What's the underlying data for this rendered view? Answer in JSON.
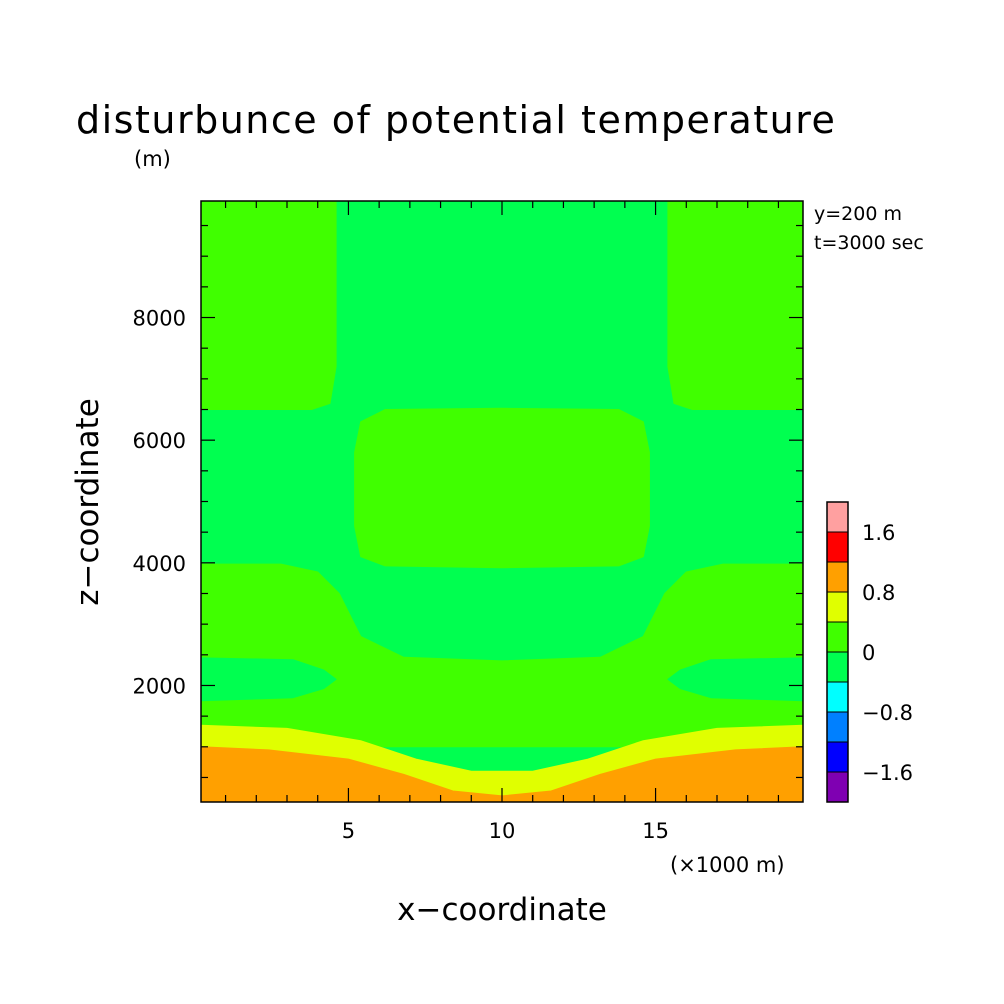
{
  "chart_data": {
    "type": "heatmap",
    "title": "disturbunce of potential temperature",
    "y_unit": "(m)",
    "x_unit": "(×1000 m)",
    "xlabel": "x−coordinate",
    "ylabel": "z−coordinate",
    "annotations": [
      "y=200 m",
      "t=3000 sec"
    ],
    "x_range": [
      0.2,
      19.8
    ],
    "y_range": [
      100,
      9900
    ],
    "x_ticks": [
      {
        "value": 5,
        "label": "5"
      },
      {
        "value": 10,
        "label": "10"
      },
      {
        "value": 15,
        "label": "15"
      }
    ],
    "y_ticks": [
      {
        "value": 2000,
        "label": "2000"
      },
      {
        "value": 4000,
        "label": "4000"
      },
      {
        "value": 6000,
        "label": "6000"
      },
      {
        "value": 8000,
        "label": "8000"
      }
    ],
    "colorbar": {
      "levels": [
        {
          "from": -2.0,
          "to": -1.6,
          "color": "#7f00b2"
        },
        {
          "from": -1.6,
          "to": -1.2,
          "color": "#0000ff"
        },
        {
          "from": -1.2,
          "to": -0.8,
          "color": "#0080ff"
        },
        {
          "from": -0.8,
          "to": -0.4,
          "color": "#00ffff"
        },
        {
          "from": -0.4,
          "to": 0.0,
          "color": "#00ff50"
        },
        {
          "from": 0.0,
          "to": 0.4,
          "color": "#40ff00"
        },
        {
          "from": 0.4,
          "to": 0.8,
          "color": "#e0ff00"
        },
        {
          "from": 0.8,
          "to": 1.2,
          "color": "#ffa000"
        },
        {
          "from": 1.2,
          "to": 1.6,
          "color": "#ff0000"
        },
        {
          "from": 1.6,
          "to": 2.0,
          "color": "#ffa0a0"
        }
      ],
      "tick_labels": [
        {
          "value": 1.6,
          "label": "1.6"
        },
        {
          "value": 0.8,
          "label": "0.8"
        },
        {
          "value": 0.0,
          "label": "0"
        },
        {
          "value": -0.8,
          "label": "−0.8"
        },
        {
          "value": -1.6,
          "label": "−1.6"
        }
      ]
    },
    "regions": [
      {
        "name": "background",
        "level": "-0.4..0",
        "points": [
          [
            0.2,
            100
          ],
          [
            19.8,
            100
          ],
          [
            19.8,
            9900
          ],
          [
            0.2,
            9900
          ]
        ]
      },
      {
        "name": "upper-left",
        "level": "0..0.4",
        "points": [
          [
            0.2,
            6500
          ],
          [
            3.8,
            6500
          ],
          [
            4.4,
            6600
          ],
          [
            4.6,
            7200
          ],
          [
            4.6,
            9900
          ],
          [
            0.2,
            9900
          ]
        ]
      },
      {
        "name": "upper-right",
        "level": "0..0.4",
        "points": [
          [
            19.8,
            6500
          ],
          [
            16.2,
            6500
          ],
          [
            15.6,
            6600
          ],
          [
            15.4,
            7200
          ],
          [
            15.4,
            9900
          ],
          [
            19.8,
            9900
          ]
        ]
      },
      {
        "name": "middle-blob",
        "level": "0..0.4",
        "points": [
          [
            5.4,
            4100
          ],
          [
            6.2,
            3950
          ],
          [
            10.0,
            3920
          ],
          [
            13.8,
            3950
          ],
          [
            14.6,
            4100
          ],
          [
            14.8,
            4600
          ],
          [
            14.8,
            5800
          ],
          [
            14.6,
            6300
          ],
          [
            13.8,
            6500
          ],
          [
            10.0,
            6520
          ],
          [
            6.2,
            6500
          ],
          [
            5.4,
            6300
          ],
          [
            5.2,
            5800
          ],
          [
            5.2,
            4600
          ]
        ]
      },
      {
        "name": "lower-band",
        "level": "0..0.4",
        "points": [
          [
            0.2,
            1000
          ],
          [
            19.8,
            1000
          ],
          [
            19.8,
            3980
          ],
          [
            17.2,
            3980
          ],
          [
            16.0,
            3850
          ],
          [
            15.3,
            3500
          ],
          [
            14.6,
            2800
          ],
          [
            13.2,
            2460
          ],
          [
            10.0,
            2400
          ],
          [
            6.8,
            2460
          ],
          [
            5.4,
            2800
          ],
          [
            4.7,
            3500
          ],
          [
            4.0,
            3850
          ],
          [
            2.8,
            3980
          ],
          [
            0.2,
            3980
          ]
        ]
      },
      {
        "name": "left-eye",
        "level": "-0.4..0",
        "points": [
          [
            0.2,
            1750
          ],
          [
            3.2,
            1800
          ],
          [
            4.2,
            1950
          ],
          [
            4.6,
            2100
          ],
          [
            4.2,
            2250
          ],
          [
            3.2,
            2420
          ],
          [
            0.2,
            2450
          ]
        ]
      },
      {
        "name": "right-eye",
        "level": "-0.4..0",
        "points": [
          [
            19.8,
            1750
          ],
          [
            16.8,
            1800
          ],
          [
            15.8,
            1950
          ],
          [
            15.4,
            2100
          ],
          [
            15.8,
            2250
          ],
          [
            16.8,
            2420
          ],
          [
            19.8,
            2450
          ]
        ]
      },
      {
        "name": "yellow-band",
        "level": "0.4..0.8",
        "points": [
          [
            0.2,
            100
          ],
          [
            19.8,
            100
          ],
          [
            19.8,
            1350
          ],
          [
            17.0,
            1300
          ],
          [
            14.6,
            1100
          ],
          [
            12.8,
            800
          ],
          [
            11.0,
            600
          ],
          [
            9.0,
            600
          ],
          [
            7.2,
            800
          ],
          [
            5.4,
            1100
          ],
          [
            3.0,
            1300
          ],
          [
            0.2,
            1350
          ]
        ]
      },
      {
        "name": "orange-band",
        "level": "0.8..1.2",
        "points": [
          [
            0.2,
            100
          ],
          [
            19.8,
            100
          ],
          [
            19.8,
            1000
          ],
          [
            17.6,
            950
          ],
          [
            15.0,
            800
          ],
          [
            13.2,
            550
          ],
          [
            11.6,
            280
          ],
          [
            10.0,
            200
          ],
          [
            8.4,
            280
          ],
          [
            6.8,
            550
          ],
          [
            5.0,
            800
          ],
          [
            2.4,
            950
          ],
          [
            0.2,
            1000
          ]
        ]
      }
    ]
  }
}
